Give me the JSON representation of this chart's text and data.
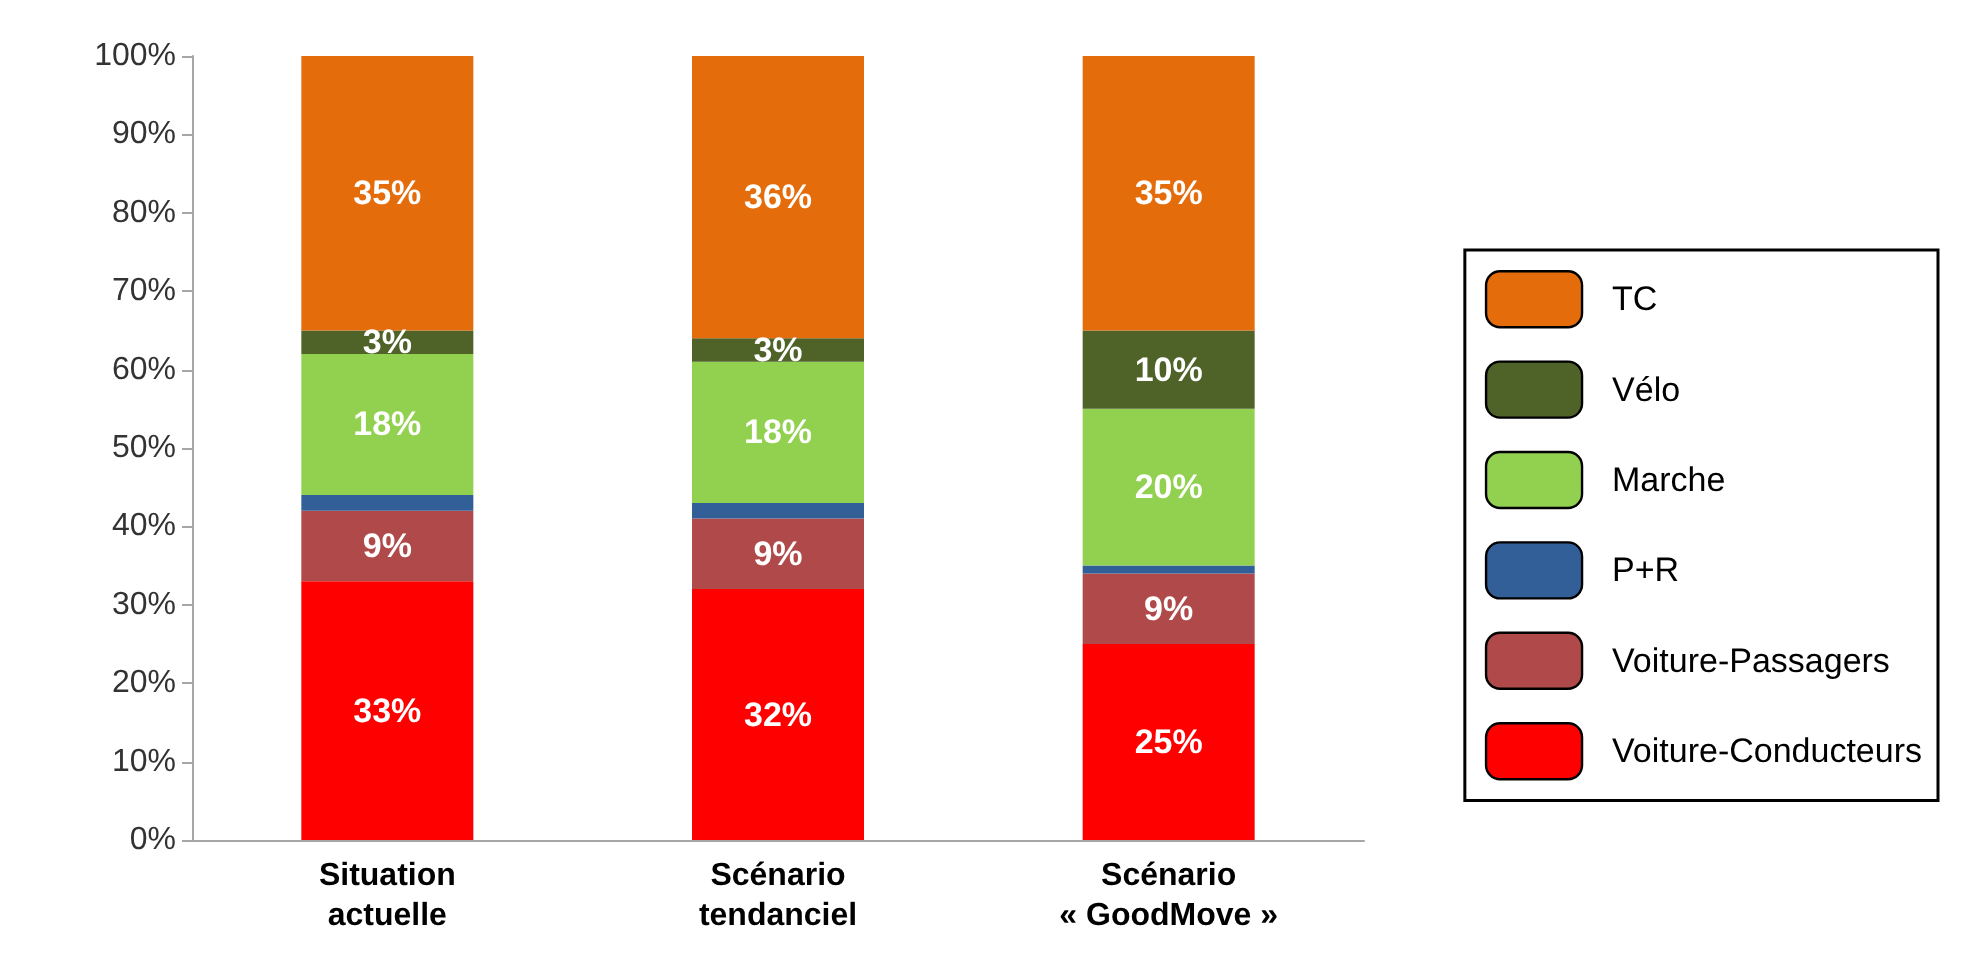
{
  "chart_data": {
    "type": "bar",
    "stacked": true,
    "categories": [
      "Situation\nactuelle",
      "Scénario\ntendanciel",
      "Scénario\n« GoodMove »"
    ],
    "ylim": [
      0,
      100
    ],
    "yticks": [
      {
        "value": 0,
        "label": "0%"
      },
      {
        "value": 10,
        "label": "10%"
      },
      {
        "value": 20,
        "label": "20%"
      },
      {
        "value": 30,
        "label": "30%"
      },
      {
        "value": 40,
        "label": "40%"
      },
      {
        "value": 50,
        "label": "50%"
      },
      {
        "value": 60,
        "label": "60%"
      },
      {
        "value": 70,
        "label": "70%"
      },
      {
        "value": 80,
        "label": "80%"
      },
      {
        "value": 90,
        "label": "90%"
      },
      {
        "value": 100,
        "label": "100%"
      }
    ],
    "grid": false,
    "legend": "right",
    "series": [
      {
        "name": "Voiture-Conducteurs",
        "color": "#ff0000",
        "values": [
          33,
          32,
          25
        ],
        "value_labels": [
          "33%",
          "32%",
          "25%"
        ]
      },
      {
        "name": "Voiture-Passagers",
        "color": "#b04a4a",
        "values": [
          9,
          9,
          9
        ],
        "value_labels": [
          "9%",
          "9%",
          "9%"
        ]
      },
      {
        "name": "P+R",
        "color": "#335f99",
        "values": [
          2,
          2,
          1
        ],
        "value_labels": [
          null,
          null,
          null
        ]
      },
      {
        "name": "Marche",
        "color": "#92d050",
        "values": [
          18,
          18,
          20
        ],
        "value_labels": [
          "18%",
          "18%",
          "20%"
        ]
      },
      {
        "name": "Vélo",
        "color": "#4f6228",
        "values": [
          3,
          3,
          10
        ],
        "value_labels": [
          "3%",
          "3%",
          "10%"
        ]
      },
      {
        "name": "TC",
        "color": "#e46c0a",
        "values": [
          35,
          36,
          35
        ],
        "value_labels": [
          "35%",
          "36%",
          "35%"
        ]
      }
    ]
  }
}
